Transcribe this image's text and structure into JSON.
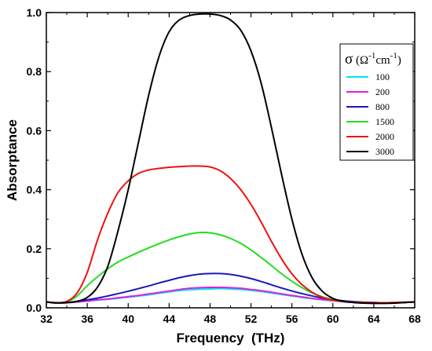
{
  "chart_data": {
    "type": "line",
    "xlabel": "Frequency  (THz)",
    "ylabel": "Absorptance",
    "xlim": [
      32,
      68
    ],
    "ylim": [
      0,
      1.0
    ],
    "xticks": [
      "32",
      "36",
      "40",
      "44",
      "48",
      "52",
      "56",
      "60",
      "64",
      "68"
    ],
    "yticks": [
      "0.0",
      "0.2",
      "0.4",
      "0.6",
      "0.8",
      "1.0"
    ],
    "grid": false,
    "legend": {
      "position": "right",
      "title": {
        "sigma": "σ",
        "open": " (Ω",
        "sup1": "-1",
        "mid": "cm",
        "sup2": "-1",
        "close": ")"
      }
    },
    "x": [
      32,
      33,
      34,
      35,
      36,
      37,
      38,
      39,
      40,
      41,
      42,
      43,
      44,
      45,
      46,
      47,
      48,
      49,
      50,
      51,
      52,
      53,
      54,
      55,
      56,
      57,
      58,
      59,
      60,
      61,
      62,
      63,
      64,
      65,
      66,
      67,
      68
    ],
    "series": [
      {
        "name": "100",
        "color": "#00e5ee",
        "values": [
          0.02,
          0.016,
          0.017,
          0.02,
          0.023,
          0.026,
          0.029,
          0.032,
          0.036,
          0.04,
          0.044,
          0.049,
          0.054,
          0.058,
          0.061,
          0.063,
          0.064,
          0.065,
          0.064,
          0.062,
          0.059,
          0.055,
          0.05,
          0.045,
          0.04,
          0.035,
          0.031,
          0.027,
          0.024,
          0.022,
          0.02,
          0.019,
          0.018,
          0.017,
          0.017,
          0.018,
          0.02
        ]
      },
      {
        "name": "200",
        "color": "#e020e0",
        "values": [
          0.02,
          0.016,
          0.017,
          0.02,
          0.023,
          0.027,
          0.03,
          0.034,
          0.038,
          0.042,
          0.047,
          0.052,
          0.057,
          0.062,
          0.066,
          0.068,
          0.069,
          0.069,
          0.068,
          0.066,
          0.062,
          0.058,
          0.053,
          0.047,
          0.042,
          0.037,
          0.032,
          0.028,
          0.025,
          0.022,
          0.02,
          0.019,
          0.018,
          0.017,
          0.017,
          0.018,
          0.02
        ]
      },
      {
        "name": "800",
        "color": "#1a1ab8",
        "values": [
          0.02,
          0.016,
          0.018,
          0.022,
          0.027,
          0.033,
          0.04,
          0.048,
          0.056,
          0.065,
          0.074,
          0.084,
          0.093,
          0.102,
          0.109,
          0.114,
          0.116,
          0.116,
          0.113,
          0.107,
          0.099,
          0.089,
          0.078,
          0.067,
          0.057,
          0.048,
          0.04,
          0.033,
          0.028,
          0.024,
          0.021,
          0.019,
          0.018,
          0.017,
          0.017,
          0.018,
          0.02
        ]
      },
      {
        "name": "1500",
        "color": "#22dd22",
        "values": [
          0.02,
          0.017,
          0.02,
          0.04,
          0.075,
          0.105,
          0.132,
          0.155,
          0.172,
          0.188,
          0.203,
          0.217,
          0.23,
          0.241,
          0.25,
          0.255,
          0.254,
          0.247,
          0.235,
          0.218,
          0.196,
          0.17,
          0.143,
          0.115,
          0.09,
          0.068,
          0.05,
          0.037,
          0.028,
          0.022,
          0.019,
          0.018,
          0.017,
          0.017,
          0.018,
          0.019,
          0.02
        ]
      },
      {
        "name": "2000",
        "color": "#ee1111",
        "values": [
          0.02,
          0.017,
          0.022,
          0.05,
          0.12,
          0.23,
          0.32,
          0.39,
          0.43,
          0.455,
          0.467,
          0.472,
          0.476,
          0.478,
          0.48,
          0.48,
          0.477,
          0.464,
          0.438,
          0.4,
          0.35,
          0.29,
          0.225,
          0.165,
          0.115,
          0.078,
          0.052,
          0.035,
          0.026,
          0.021,
          0.019,
          0.018,
          0.017,
          0.017,
          0.018,
          0.019,
          0.02
        ]
      },
      {
        "name": "3000",
        "color": "#000000",
        "values": [
          0.02,
          0.017,
          0.018,
          0.022,
          0.035,
          0.07,
          0.14,
          0.26,
          0.4,
          0.56,
          0.72,
          0.85,
          0.935,
          0.975,
          0.99,
          0.995,
          0.995,
          0.99,
          0.975,
          0.94,
          0.87,
          0.76,
          0.61,
          0.45,
          0.3,
          0.18,
          0.1,
          0.055,
          0.032,
          0.022,
          0.018,
          0.016,
          0.015,
          0.015,
          0.016,
          0.018,
          0.02
        ]
      }
    ]
  }
}
